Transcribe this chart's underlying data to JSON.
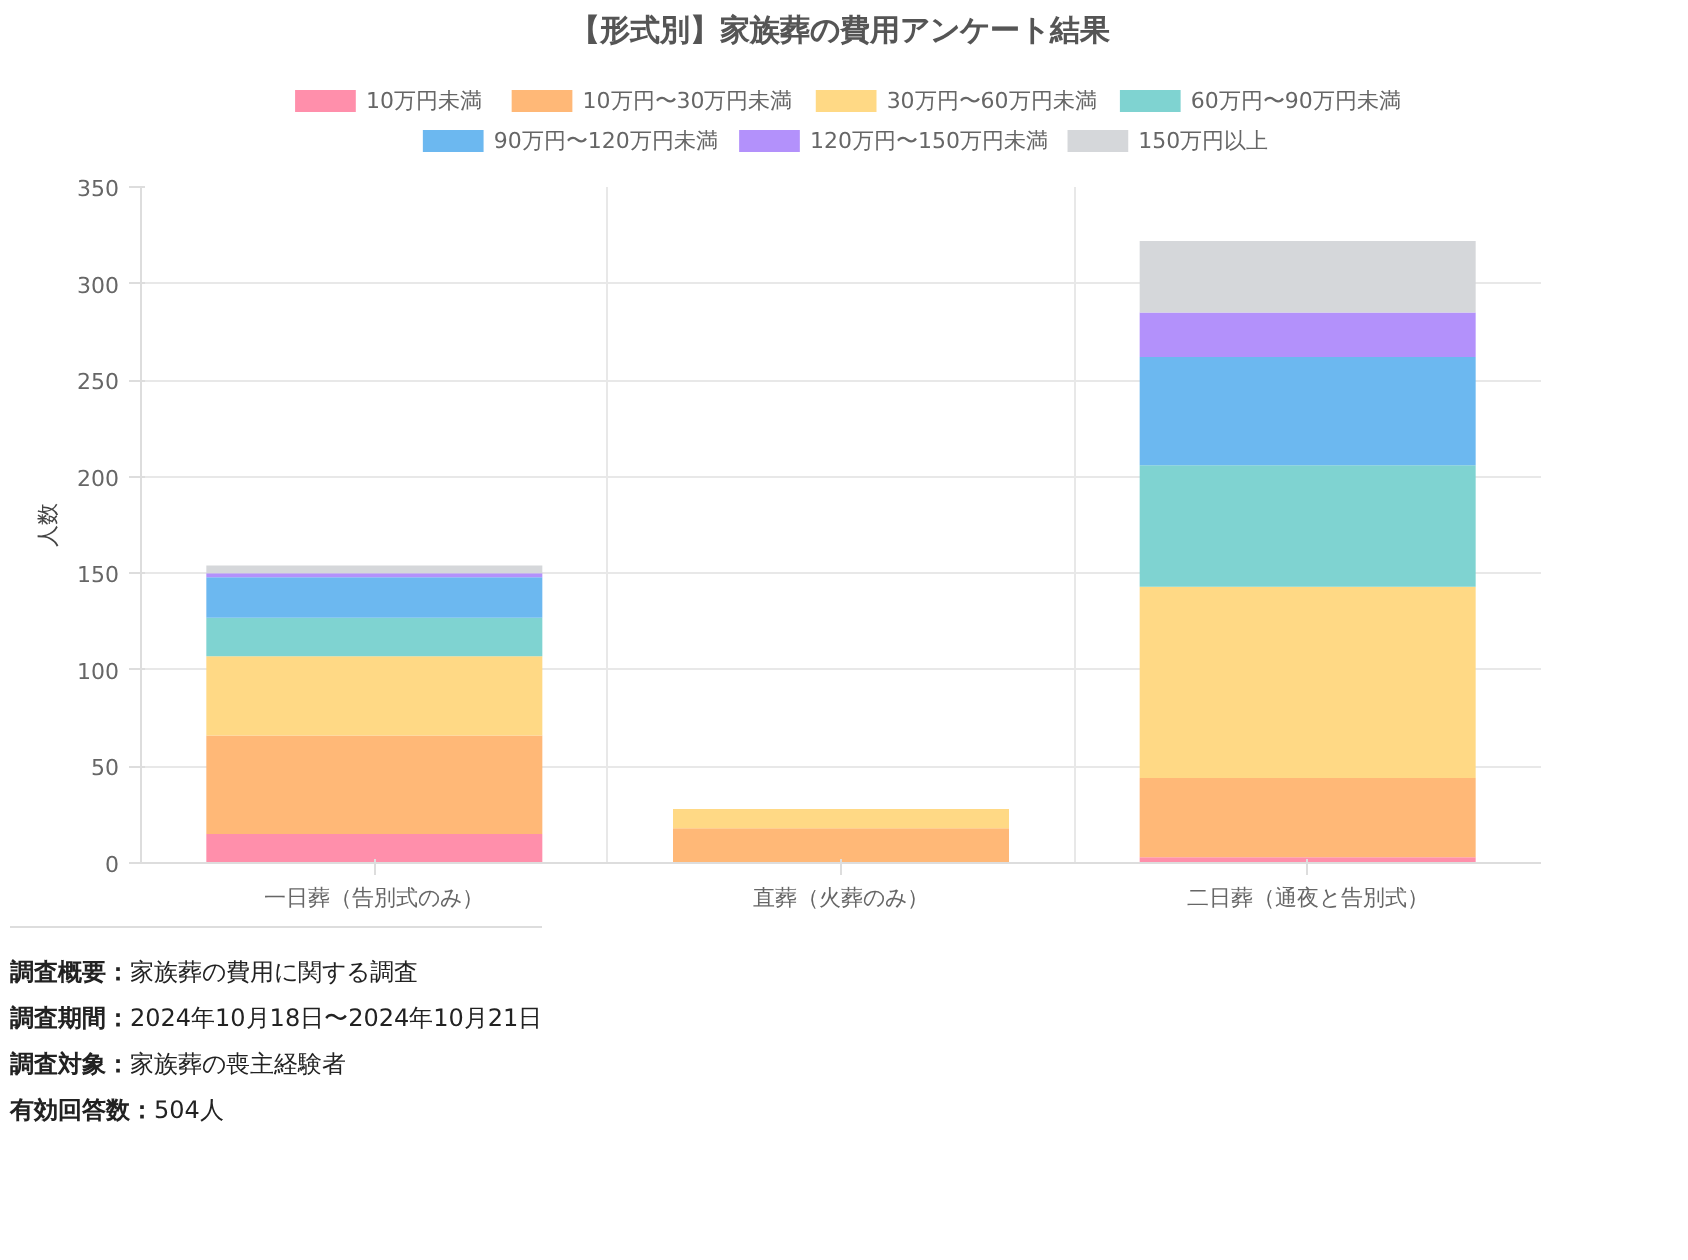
{
  "chart_data": {
    "type": "bar",
    "title": "【形式別】家族葬の費用アンケート結果",
    "ylabel": "人数",
    "categories": [
      "一日葬（告別式のみ）",
      "直葬（火葬のみ）",
      "二日葬（通夜と告別式）"
    ],
    "stacked": true,
    "ylim": [
      0,
      350
    ],
    "yticks": [
      0,
      50,
      100,
      150,
      200,
      250,
      300,
      350
    ],
    "grid": true,
    "legend": "top",
    "series": [
      {
        "name": "10万円未満",
        "color": "#ff8fab",
        "values": [
          15,
          0,
          3
        ]
      },
      {
        "name": "10万円〜30万円未満",
        "color": "#ffb877",
        "values": [
          51,
          18,
          41
        ]
      },
      {
        "name": "30万円〜60万円未満",
        "color": "#ffd985",
        "values": [
          41,
          10,
          99
        ]
      },
      {
        "name": "60万円〜90万円未満",
        "color": "#7fd3d1",
        "values": [
          20,
          0,
          63
        ]
      },
      {
        "name": "90万円〜120万円未満",
        "color": "#6cb8f0",
        "values": [
          21,
          0,
          56
        ]
      },
      {
        "name": "120万円〜150万円未満",
        "color": "#b391fb",
        "values": [
          2,
          0,
          23
        ]
      },
      {
        "name": "150万円以上",
        "color": "#d5d7da",
        "values": [
          4,
          0,
          37
        ]
      }
    ],
    "annotations": [
      "調査概要：家族葬の費用に関する調査",
      "調査期間：2024年10月18日〜2024年10月21日",
      "調査対象：家族葬の喪主経験者",
      "有効回答数：504人"
    ]
  }
}
